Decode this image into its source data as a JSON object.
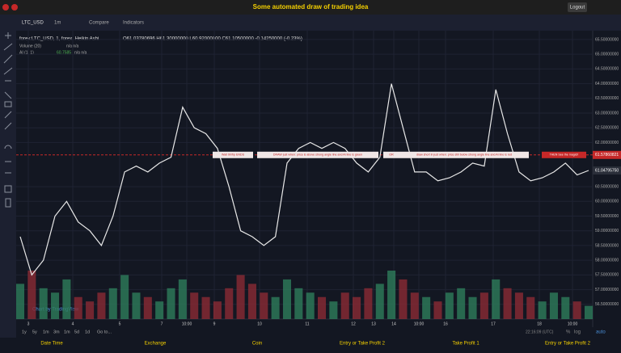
{
  "header": {
    "title": "Some automated draw of trading idea",
    "logout": "Logout"
  },
  "toolbar": {
    "symbol": "LTC_USD",
    "interval": "1m",
    "compare": "Compare",
    "indicators": "Indicators"
  },
  "legend": {
    "series": "forex:LTC_USD, 1, forex, Heikin Ashi",
    "ohlc": "O61.03780696 H61.30000000 L60.92000000 C61.10500000 -0.14250000 (-0.23%)",
    "volume": "Volume (20)",
    "volume_values": "n/a  n/a",
    "ai": "AI (1, 1)",
    "ai_value": "60.7585",
    "ai_values": "n/a  n/a"
  },
  "chart_data": {
    "type": "line",
    "price": [
      58.8,
      57.5,
      58.0,
      59.5,
      60.0,
      59.3,
      59.0,
      58.5,
      59.5,
      61.0,
      61.2,
      61.0,
      61.3,
      61.5,
      63.2,
      62.5,
      62.3,
      61.8,
      60.5,
      59.0,
      58.8,
      58.5,
      58.8,
      61.3,
      61.8,
      62.0,
      61.8,
      62.0,
      61.8,
      61.3,
      61.0,
      61.5,
      64.0,
      62.5,
      61.0,
      61.0,
      60.7,
      60.8,
      61.0,
      61.3,
      61.2,
      63.8,
      62.3,
      61.0,
      60.7,
      60.8,
      61.0,
      61.3,
      60.9,
      61.05
    ],
    "volume": [
      40,
      55,
      35,
      30,
      45,
      25,
      20,
      30,
      35,
      50,
      30,
      25,
      20,
      35,
      45,
      30,
      25,
      20,
      35,
      50,
      40,
      30,
      25,
      45,
      35,
      30,
      25,
      20,
      30,
      25,
      35,
      40,
      55,
      45,
      30,
      25,
      20,
      30,
      35,
      25,
      30,
      45,
      35,
      30,
      25,
      20,
      30,
      25,
      20,
      15
    ],
    "line_color": "#e8e8e8",
    "up_color": "#2e7d5b",
    "down_color": "#8b2a35",
    "ylim": [
      56.0,
      65.8
    ],
    "yticks": [
      {
        "value": 56.5,
        "label": "56.50000000"
      },
      {
        "value": 57,
        "label": "57.00000000"
      },
      {
        "value": 57.5,
        "label": "57.50000000"
      },
      {
        "value": 58,
        "label": "58.00000000"
      },
      {
        "value": 58.5,
        "label": "58.50000000"
      },
      {
        "value": 59,
        "label": "59.00000000"
      },
      {
        "value": 59.5,
        "label": "59.50000000"
      },
      {
        "value": 60,
        "label": "60.00000000"
      },
      {
        "value": 60.5,
        "label": "60.50000000"
      },
      {
        "value": 62,
        "label": "62.00000000"
      },
      {
        "value": 62.5,
        "label": "62.50000000"
      },
      {
        "value": 63,
        "label": "63.00000000"
      },
      {
        "value": 63.5,
        "label": "63.50000000"
      },
      {
        "value": 64,
        "label": "64.00000000"
      },
      {
        "value": 64.5,
        "label": "64.50000000"
      },
      {
        "value": 65,
        "label": "65.00000000"
      },
      {
        "value": 65.5,
        "label": "65.50000000"
      }
    ],
    "marker_line": 61.57860821,
    "last_price": {
      "value": 61.0479575,
      "label": "61.04795750"
    },
    "xticks": [
      "3",
      "4",
      "5",
      "7",
      "10:00",
      "9",
      "10",
      "11",
      "12",
      "13",
      "14",
      "10:00",
      "16",
      "17",
      "18",
      "10:00"
    ],
    "annotations": [
      "Wait till flip ENDS",
      "DRAW just when: price is above strong angle line and AI line is green",
      "OR",
      "draw short in just when: price still below strong angle line and AI line is red",
      "THEN See the magic!!"
    ],
    "credit": "Chart by TradingView"
  },
  "bottom_bar": {
    "ranges": [
      "1y",
      "5y",
      "1m",
      "3m",
      "1m",
      "5d",
      "1d",
      "Go to..."
    ],
    "time": "22:16:09 (UTC)",
    "percent": "%",
    "log": "log",
    "auto": "auto"
  },
  "tabs": [
    "Date Time",
    "Exchange",
    "Coin",
    "Entry or Take Profit 2",
    "Take Profit 1",
    "Entry or Take Profit 2"
  ]
}
